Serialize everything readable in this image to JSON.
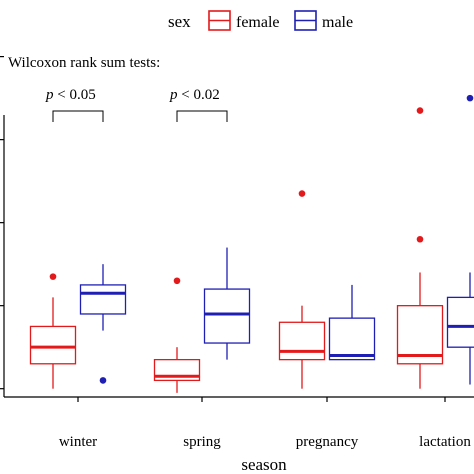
{
  "chart_data": {
    "type": "box",
    "title": "",
    "xlabel": "season",
    "ylabel": "",
    "legend": {
      "title": "sex",
      "placement": "top",
      "entries": [
        {
          "label": "female",
          "color": "#e31a1c"
        },
        {
          "label": "male",
          "color": "#1f1fb4"
        }
      ]
    },
    "annotation": "Wilcoxon rank sum tests:",
    "significance": [
      {
        "category": "winter",
        "label_italic": "p",
        "label_rest": " < 0.05"
      },
      {
        "category": "spring",
        "label_italic": "p",
        "label_rest": " < 0.02"
      }
    ],
    "ylim": [
      0,
      4.3
    ],
    "grid": false,
    "categories": [
      "winter",
      "spring",
      "pregnancy",
      "lactation"
    ],
    "series": [
      {
        "name": "female",
        "color": "#e31a1c",
        "boxes": [
          {
            "category": "winter",
            "min": 0.1,
            "q1": 0.4,
            "median": 0.6,
            "q3": 0.85,
            "max": 1.2,
            "outliers": [
              1.45
            ]
          },
          {
            "category": "spring",
            "min": 0.05,
            "q1": 0.2,
            "median": 0.25,
            "q3": 0.45,
            "max": 0.6,
            "outliers": [
              1.4
            ]
          },
          {
            "category": "pregnancy",
            "min": 0.1,
            "q1": 0.45,
            "median": 0.55,
            "q3": 0.9,
            "max": 1.1,
            "outliers": [
              2.45
            ]
          },
          {
            "category": "lactation",
            "min": 0.1,
            "q1": 0.4,
            "median": 0.5,
            "q3": 1.1,
            "max": 1.5,
            "outliers": [
              3.45,
              1.9
            ]
          }
        ]
      },
      {
        "name": "male",
        "color": "#1f1fb4",
        "boxes": [
          {
            "category": "winter",
            "min": 0.8,
            "q1": 1.0,
            "median": 1.25,
            "q3": 1.35,
            "max": 1.6,
            "outliers": [
              0.2
            ]
          },
          {
            "category": "spring",
            "min": 0.45,
            "q1": 0.65,
            "median": 1.0,
            "q3": 1.3,
            "max": 1.8,
            "outliers": []
          },
          {
            "category": "pregnancy",
            "min": 0.45,
            "q1": 0.45,
            "median": 0.5,
            "q3": 0.95,
            "max": 1.35,
            "outliers": []
          },
          {
            "category": "lactation",
            "min": 0.15,
            "q1": 0.6,
            "median": 0.85,
            "q3": 1.2,
            "max": 1.5,
            "outliers": [
              3.6
            ]
          }
        ]
      }
    ]
  }
}
